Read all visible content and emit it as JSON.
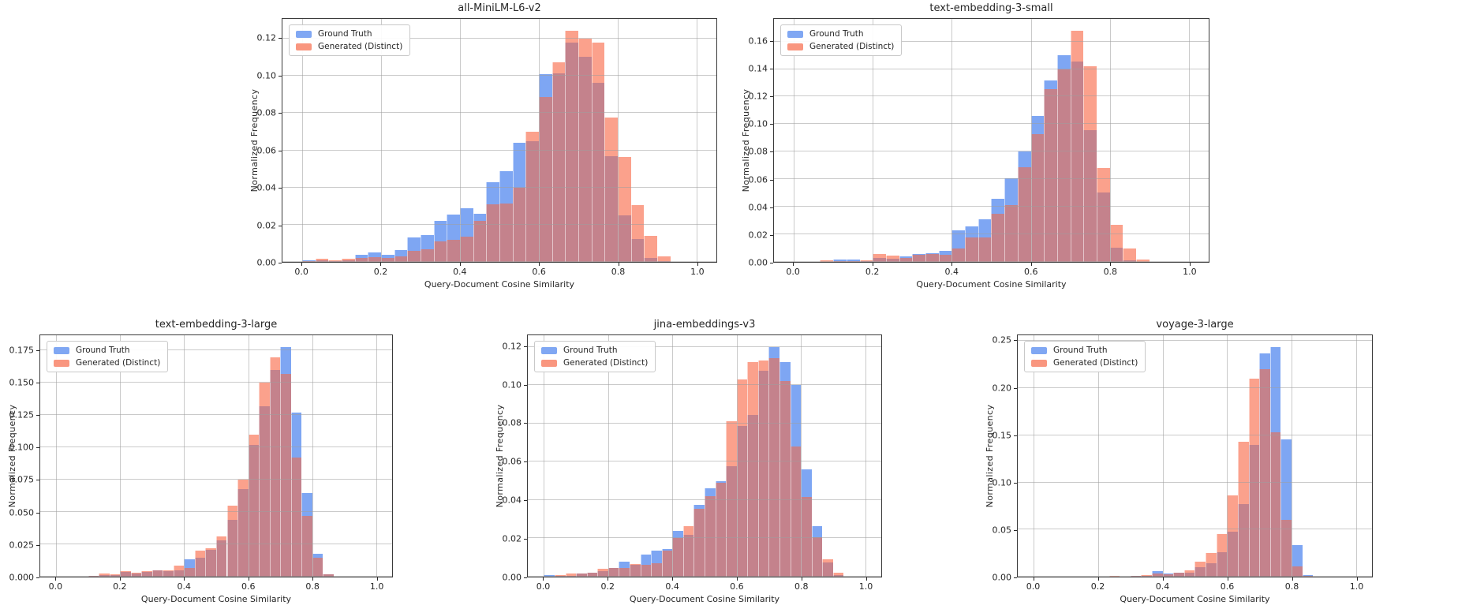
{
  "figure": {
    "background": "#ffffff",
    "colors": {
      "ground_truth_fill": "#7ea6f3",
      "generated_fill": "#fba18c",
      "overlap_fill": "#c4828c",
      "legend_ground_truth": "#80a7f3",
      "legend_generated": "#f9967f",
      "grid": "#9e9e9e",
      "spine": "#3a3a3a",
      "text": "#262626"
    }
  },
  "chart_data": [
    {
      "type": "bar",
      "subtype": "overlaid-histogram",
      "title": "all-MiniLM-L6-v2",
      "xlabel": "Query-Document Cosine Similarity",
      "ylabel": "Normalized Frequency",
      "legend_position": "upper left",
      "grid": true,
      "xlim": [
        -0.05,
        1.05
      ],
      "ylim": [
        0,
        0.1307
      ],
      "xtick_values": [
        0.0,
        0.2,
        0.4,
        0.6,
        0.8,
        1.0
      ],
      "xtick_labels": [
        "0.0",
        "0.2",
        "0.4",
        "0.6",
        "0.8",
        "1.0"
      ],
      "ytick_values": [
        0,
        0.02,
        0.04,
        0.06,
        0.08,
        0.1,
        0.12
      ],
      "ytick_labels": [
        "0.00",
        "0.02",
        "0.04",
        "0.06",
        "0.08",
        "0.10",
        "0.12"
      ],
      "bins": {
        "start": 0.0,
        "width": 0.033333
      },
      "series": [
        {
          "name": "Ground Truth",
          "values": [
            0.001,
            0.001,
            0.0005,
            0.001,
            0.004,
            0.005,
            0.004,
            0.0065,
            0.013,
            0.0145,
            0.022,
            0.0255,
            0.029,
            0.026,
            0.043,
            0.049,
            0.064,
            0.065,
            0.101,
            0.1015,
            0.118,
            0.1105,
            0.0965,
            0.057,
            0.025,
            0.0125,
            0.002,
            0.0005,
            0,
            0
          ]
        },
        {
          "name": "Generated (Distinct)",
          "values": [
            0.0005,
            0.0015,
            0.001,
            0.0015,
            0.002,
            0.0025,
            0.002,
            0.003,
            0.006,
            0.007,
            0.011,
            0.012,
            0.0135,
            0.022,
            0.031,
            0.0315,
            0.04,
            0.07,
            0.0885,
            0.1075,
            0.1245,
            0.12,
            0.118,
            0.0775,
            0.0565,
            0.0305,
            0.014,
            0.003,
            0,
            0
          ]
        }
      ]
    },
    {
      "type": "bar",
      "subtype": "overlaid-histogram",
      "title": "text-embedding-3-small",
      "xlabel": "Query-Document Cosine Similarity",
      "ylabel": "Normalized Frequency",
      "legend_position": "upper left",
      "grid": true,
      "xlim": [
        -0.05,
        1.05
      ],
      "ylim": [
        0,
        0.1764
      ],
      "xtick_values": [
        0.0,
        0.2,
        0.4,
        0.6,
        0.8,
        1.0
      ],
      "xtick_labels": [
        "0.0",
        "0.2",
        "0.4",
        "0.6",
        "0.8",
        "1.0"
      ],
      "ytick_values": [
        0,
        0.02,
        0.04,
        0.06,
        0.08,
        0.1,
        0.12,
        0.14,
        0.16
      ],
      "ytick_labels": [
        "0.00",
        "0.02",
        "0.04",
        "0.06",
        "0.08",
        "0.10",
        "0.12",
        "0.14",
        "0.16"
      ],
      "bins": {
        "start": 0.0,
        "width": 0.033333
      },
      "series": [
        {
          "name": "Ground Truth",
          "values": [
            0,
            0,
            0,
            0.002,
            0.0015,
            0.0005,
            0.003,
            0.0025,
            0.004,
            0.006,
            0.0065,
            0.008,
            0.023,
            0.026,
            0.031,
            0.046,
            0.061,
            0.08,
            0.106,
            0.132,
            0.15,
            0.1455,
            0.0955,
            0.0505,
            0.0105,
            0.001,
            0,
            0,
            0,
            0
          ]
        },
        {
          "name": "Generated (Distinct)",
          "values": [
            0,
            0,
            0.001,
            0.0005,
            0.0005,
            0.001,
            0.006,
            0.0045,
            0.003,
            0.0055,
            0.0055,
            0.005,
            0.01,
            0.018,
            0.018,
            0.035,
            0.041,
            0.069,
            0.093,
            0.1255,
            0.14,
            0.168,
            0.142,
            0.068,
            0.027,
            0.0095,
            0.002,
            0,
            0,
            0
          ]
        }
      ]
    },
    {
      "type": "bar",
      "subtype": "overlaid-histogram",
      "title": "text-embedding-3-large",
      "xlabel": "Query-Document Cosine Similarity",
      "ylabel": "Normalized Frequency",
      "legend_position": "upper left",
      "grid": true,
      "xlim": [
        -0.05,
        1.05
      ],
      "ylim": [
        0,
        0.1869
      ],
      "xtick_values": [
        0.0,
        0.2,
        0.4,
        0.6,
        0.8,
        1.0
      ],
      "xtick_labels": [
        "0.0",
        "0.2",
        "0.4",
        "0.6",
        "0.8",
        "1.0"
      ],
      "ytick_values": [
        0,
        0.025,
        0.05,
        0.075,
        0.1,
        0.125,
        0.15,
        0.175
      ],
      "ytick_labels": [
        "0.000",
        "0.025",
        "0.050",
        "0.075",
        "0.100",
        "0.125",
        "0.150",
        "0.175"
      ],
      "bins": {
        "start": 0.0,
        "width": 0.033333
      },
      "series": [
        {
          "name": "Ground Truth",
          "values": [
            0,
            0,
            0,
            0.0005,
            0.001,
            0.0015,
            0.004,
            0.0025,
            0.0035,
            0.005,
            0.0045,
            0.005,
            0.0135,
            0.0145,
            0.021,
            0.028,
            0.044,
            0.068,
            0.102,
            0.132,
            0.16,
            0.178,
            0.127,
            0.065,
            0.018,
            0.002,
            0,
            0,
            0,
            0
          ]
        },
        {
          "name": "Generated (Distinct)",
          "values": [
            0,
            0,
            0,
            0.0005,
            0.0025,
            0.002,
            0.0045,
            0.003,
            0.004,
            0.005,
            0.005,
            0.0085,
            0.007,
            0.02,
            0.022,
            0.031,
            0.055,
            0.075,
            0.11,
            0.15,
            0.17,
            0.157,
            0.092,
            0.047,
            0.0145,
            0.002,
            0,
            0,
            0,
            0
          ]
        }
      ]
    },
    {
      "type": "bar",
      "subtype": "overlaid-histogram",
      "title": "jina-embeddings-v3",
      "xlabel": "Query-Document Cosine Similarity",
      "ylabel": "Normalized Frequency",
      "legend_position": "upper left",
      "grid": true,
      "xlim": [
        -0.05,
        1.05
      ],
      "ylim": [
        0,
        0.126
      ],
      "xtick_values": [
        0.0,
        0.2,
        0.4,
        0.6,
        0.8,
        1.0
      ],
      "xtick_labels": [
        "0.0",
        "0.2",
        "0.4",
        "0.6",
        "0.8",
        "1.0"
      ],
      "ytick_values": [
        0,
        0.02,
        0.04,
        0.06,
        0.08,
        0.1,
        0.12
      ],
      "ytick_labels": [
        "0.00",
        "0.02",
        "0.04",
        "0.06",
        "0.08",
        "0.10",
        "0.12"
      ],
      "bins": {
        "start": 0.0,
        "width": 0.033333
      },
      "series": [
        {
          "name": "Ground Truth",
          "values": [
            0.001,
            0.0005,
            0.0005,
            0.0015,
            0.002,
            0.003,
            0.0045,
            0.008,
            0.006,
            0.0115,
            0.0135,
            0.0145,
            0.024,
            0.022,
            0.0375,
            0.046,
            0.05,
            0.0575,
            0.0785,
            0.0845,
            0.1075,
            0.12,
            0.112,
            0.1,
            0.056,
            0.0265,
            0.0075,
            0.001,
            0,
            0
          ]
        },
        {
          "name": "Generated (Distinct)",
          "values": [
            0,
            0.001,
            0.0015,
            0.0015,
            0.002,
            0.004,
            0.0045,
            0.0045,
            0.0065,
            0.006,
            0.007,
            0.0135,
            0.02,
            0.0265,
            0.0355,
            0.042,
            0.049,
            0.081,
            0.103,
            0.112,
            0.113,
            0.114,
            0.102,
            0.068,
            0.0415,
            0.0205,
            0.009,
            0.002,
            0,
            0
          ]
        }
      ]
    },
    {
      "type": "bar",
      "subtype": "overlaid-histogram",
      "title": "voyage-3-large",
      "xlabel": "Query-Document Cosine Similarity",
      "ylabel": "Normalized Frequency",
      "legend_position": "upper left",
      "grid": true,
      "xlim": [
        -0.05,
        1.05
      ],
      "ylim": [
        0,
        0.2562
      ],
      "xtick_values": [
        0.0,
        0.2,
        0.4,
        0.6,
        0.8,
        1.0
      ],
      "xtick_labels": [
        "0.0",
        "0.2",
        "0.4",
        "0.6",
        "0.8",
        "1.0"
      ],
      "ytick_values": [
        0,
        0.05,
        0.1,
        0.15,
        0.2,
        0.25
      ],
      "ytick_labels": [
        "0.00",
        "0.05",
        "0.10",
        "0.15",
        "0.20",
        "0.25"
      ],
      "bins": {
        "start": 0.0,
        "width": 0.033333
      },
      "series": [
        {
          "name": "Ground Truth",
          "values": [
            0,
            0,
            0,
            0,
            0,
            0,
            0,
            0.0005,
            0,
            0.001,
            0.001,
            0.006,
            0.0035,
            0.004,
            0.004,
            0.01,
            0.0145,
            0.026,
            0.048,
            0.077,
            0.14,
            0.237,
            0.244,
            0.146,
            0.0335,
            0.002,
            0,
            0,
            0,
            0
          ]
        },
        {
          "name": "Generated (Distinct)",
          "values": [
            0,
            0,
            0,
            0,
            0,
            0,
            0,
            0.001,
            0,
            0.001,
            0.002,
            0.003,
            0.003,
            0.004,
            0.007,
            0.016,
            0.025,
            0.045,
            0.086,
            0.143,
            0.21,
            0.22,
            0.153,
            0.06,
            0.011,
            0.001,
            0,
            0,
            0,
            0
          ]
        }
      ]
    }
  ]
}
